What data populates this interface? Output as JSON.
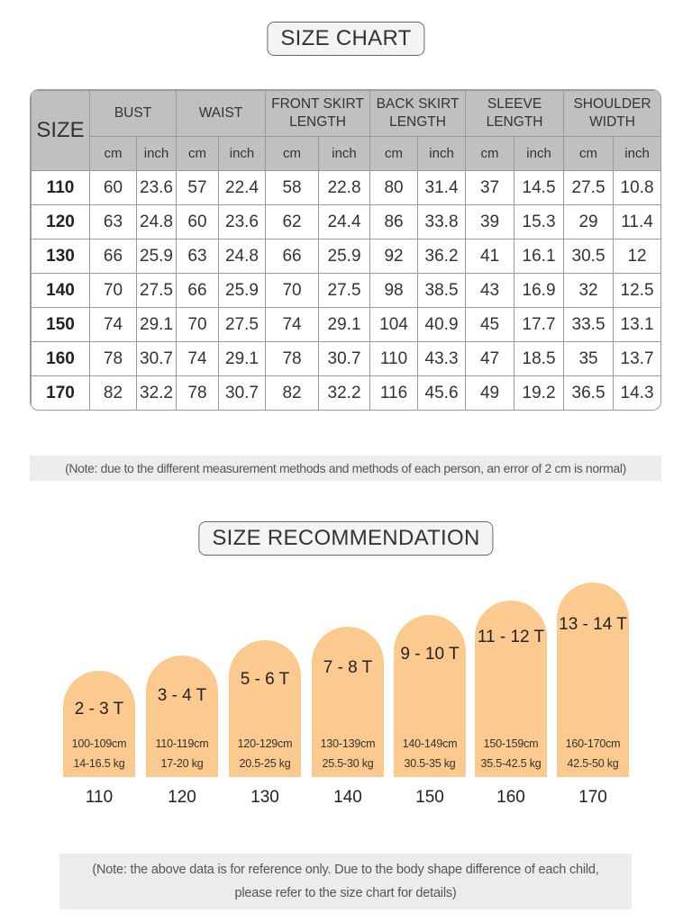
{
  "size_chart": {
    "title": "SIZE CHART",
    "size_header": "SIZE",
    "groups": [
      "BUST",
      "WAIST",
      "FRONT SKIRT LENGTH",
      "BACK SKIRT LENGTH",
      "SLEEVE LENGTH",
      "SHOULDER WIDTH"
    ],
    "units": [
      "cm",
      "inch"
    ],
    "rows": [
      [
        "110",
        "60",
        "23.6",
        "57",
        "22.4",
        "58",
        "22.8",
        "80",
        "31.4",
        "37",
        "14.5",
        "27.5",
        "10.8"
      ],
      [
        "120",
        "63",
        "24.8",
        "60",
        "23.6",
        "62",
        "24.4",
        "86",
        "33.8",
        "39",
        "15.3",
        "29",
        "11.4"
      ],
      [
        "130",
        "66",
        "25.9",
        "63",
        "24.8",
        "66",
        "25.9",
        "92",
        "36.2",
        "41",
        "16.1",
        "30.5",
        "12"
      ],
      [
        "140",
        "70",
        "27.5",
        "66",
        "25.9",
        "70",
        "27.5",
        "98",
        "38.5",
        "43",
        "16.9",
        "32",
        "12.5"
      ],
      [
        "150",
        "74",
        "29.1",
        "70",
        "27.5",
        "74",
        "29.1",
        "104",
        "40.9",
        "45",
        "17.7",
        "33.5",
        "13.1"
      ],
      [
        "160",
        "78",
        "30.7",
        "74",
        "29.1",
        "78",
        "30.7",
        "110",
        "43.3",
        "47",
        "18.5",
        "35",
        "13.7"
      ],
      [
        "170",
        "82",
        "32.2",
        "78",
        "30.7",
        "82",
        "32.2",
        "116",
        "45.6",
        "49",
        "19.2",
        "36.5",
        "14.3"
      ]
    ],
    "note": "(Note: due to the different measurement methods and methods of each person, an error of 2 cm is normal)"
  },
  "recommendation": {
    "title": "SIZE RECOMMENDATION",
    "colors": {
      "bar": "#fcca8e"
    },
    "items": [
      {
        "age": "2 - 3 T",
        "height": "100-109cm",
        "weight": "14-16.5 kg",
        "size": "110"
      },
      {
        "age": "3 - 4 T",
        "height": "110-119cm",
        "weight": "17-20 kg",
        "size": "120"
      },
      {
        "age": "5 - 6 T",
        "height": "120-129cm",
        "weight": "20.5-25 kg",
        "size": "130"
      },
      {
        "age": "7 - 8 T",
        "height": "130-139cm",
        "weight": "25.5-30 kg",
        "size": "140"
      },
      {
        "age": "9 - 10 T",
        "height": "140-149cm",
        "weight": "30.5-35 kg",
        "size": "150"
      },
      {
        "age": "11 - 12 T",
        "height": "150-159cm",
        "weight": "35.5-42.5 kg",
        "size": "160"
      },
      {
        "age": "13 - 14 T",
        "height": "160-170cm",
        "weight": "42.5-50 kg",
        "size": "170"
      }
    ],
    "note_line1": "(Note: the above data is for reference only. Due to the body shape difference of each child,",
    "note_line2": "please refer to the size chart for details)"
  }
}
